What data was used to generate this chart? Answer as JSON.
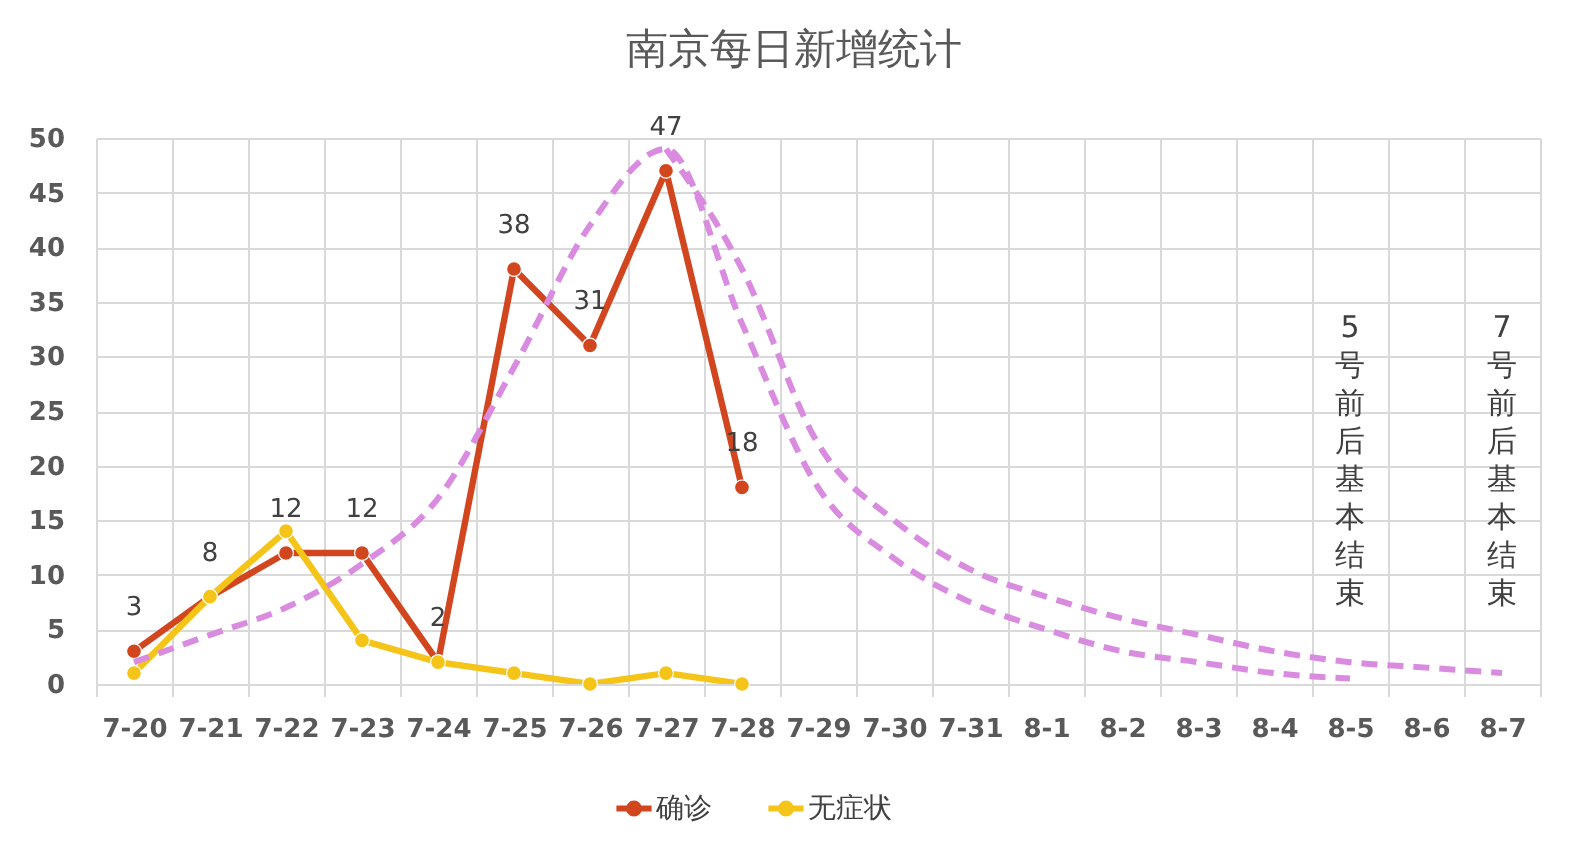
{
  "chart_data": {
    "type": "line",
    "title": "南京每日新增统计",
    "categories": [
      "7-20",
      "7-21",
      "7-22",
      "7-23",
      "7-24",
      "7-25",
      "7-26",
      "7-27",
      "7-28",
      "7-29",
      "7-30",
      "7-31",
      "8-1",
      "8-2",
      "8-3",
      "8-4",
      "8-5",
      "8-6",
      "8-7"
    ],
    "series": [
      {
        "name": "确诊",
        "color": "#d2461f",
        "marker": "circle",
        "line_style": "solid",
        "values": [
          3,
          8,
          12,
          12,
          2,
          38,
          31,
          47,
          18,
          null,
          null,
          null,
          null,
          null,
          null,
          null,
          null,
          null,
          null
        ],
        "value_labels": [
          "3",
          "8",
          "12",
          "12",
          "2",
          "38",
          "31",
          "47",
          "18",
          null,
          null,
          null,
          null,
          null,
          null,
          null,
          null,
          null,
          null
        ]
      },
      {
        "name": "无症状",
        "color": "#f4c419",
        "marker": "circle",
        "line_style": "solid",
        "values": [
          1,
          8,
          14,
          4,
          2,
          1,
          0,
          1,
          0,
          null,
          null,
          null,
          null,
          null,
          null,
          null,
          null,
          null,
          null
        ]
      },
      {
        "color": "#d98be0",
        "marker": "none",
        "line_style": "dashed",
        "values": [
          2,
          4.5,
          7,
          11,
          17,
          29,
          42,
          49,
          33,
          18,
          11.5,
          7.5,
          5,
          3,
          2,
          1,
          0.5,
          null,
          null
        ]
      },
      {
        "color": "#d98be0",
        "marker": "none",
        "line_style": "dashed",
        "values": [
          null,
          null,
          null,
          null,
          null,
          null,
          null,
          49,
          38,
          22,
          15,
          10.5,
          8,
          6,
          4.5,
          3,
          2,
          1.5,
          1
        ]
      }
    ],
    "ylim": [
      0,
      50
    ],
    "yticks": [
      0,
      5,
      10,
      15,
      20,
      25,
      30,
      35,
      40,
      45,
      50
    ],
    "grid": true,
    "legend": "bottom",
    "annotations": [
      "5号前后基本结束",
      "7号前后基本结束"
    ]
  }
}
